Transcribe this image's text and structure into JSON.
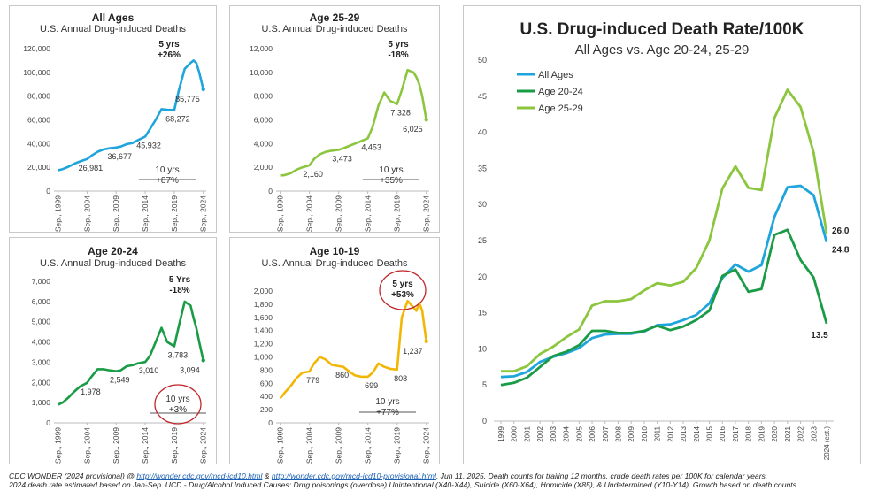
{
  "small_xticks": [
    "Sep., 1999",
    "Sep., 2004",
    "Sep., 2009",
    "Sep., 2014",
    "Sep., 2019",
    "Sep., 2024"
  ],
  "chart_data": [
    {
      "id": "all-ages",
      "type": "line",
      "title": "All Ages",
      "subtitle": "U.S. Annual Drug-induced Deaths",
      "color": "#1fa5dc",
      "ylim": [
        0,
        120000
      ],
      "yticks": [
        0,
        20000,
        40000,
        60000,
        80000,
        100000,
        120000
      ],
      "ytick_labels": [
        "0",
        "20,000",
        "40,000",
        "60,000",
        "80,000",
        "100,000",
        "120,000"
      ],
      "x": [
        1999.7,
        2000.5,
        2001.5,
        2002.5,
        2003.5,
        2004.7,
        2005.5,
        2006.5,
        2007.5,
        2008.5,
        2009.7,
        2010.5,
        2011.5,
        2012.5,
        2013.5,
        2014.7,
        2015.5,
        2016.5,
        2017.5,
        2018.5,
        2019.7,
        2020.5,
        2021.5,
        2022.5,
        2023.0,
        2023.5,
        2024.0,
        2024.7
      ],
      "values": [
        17500,
        18500,
        20500,
        23000,
        25000,
        26981,
        30000,
        33000,
        35000,
        36000,
        36677,
        37500,
        39500,
        40500,
        43000,
        45932,
        52000,
        60000,
        69000,
        68500,
        68272,
        85000,
        103000,
        108000,
        110000,
        108000,
        100000,
        85775
      ],
      "labels": [
        {
          "x": 2004.7,
          "y": 26981,
          "text": "26,981"
        },
        {
          "x": 2009.7,
          "y": 36677,
          "text": "36,677"
        },
        {
          "x": 2014.7,
          "y": 45932,
          "text": "45,932"
        },
        {
          "x": 2019.7,
          "y": 68272,
          "text": "68,272"
        },
        {
          "x": 2024.7,
          "y": 85775,
          "text": "85,775"
        }
      ],
      "annot_5yr": {
        "line1": "5 yrs",
        "line2": "+26%"
      },
      "annot_10yr": {
        "line1": "10 yrs",
        "line2": "+87%"
      }
    },
    {
      "id": "age-25-29",
      "type": "line",
      "title": "Age 25-29",
      "subtitle": "U.S. Annual Drug-induced Deaths",
      "color": "#8cc63f",
      "ylim": [
        0,
        12000
      ],
      "yticks": [
        0,
        2000,
        4000,
        6000,
        8000,
        10000,
        12000
      ],
      "ytick_labels": [
        "0",
        "2,000",
        "4,000",
        "6,000",
        "8,000",
        "10,000",
        "12,000"
      ],
      "x": [
        1999.7,
        2000.5,
        2001.5,
        2002.5,
        2003.5,
        2004.7,
        2005.5,
        2006.5,
        2007.5,
        2008.5,
        2009.7,
        2010.5,
        2011.5,
        2012.5,
        2013.5,
        2014.7,
        2015.5,
        2016.5,
        2017.5,
        2018.5,
        2019.7,
        2020.5,
        2021.5,
        2022.5,
        2023.0,
        2023.5,
        2024.0,
        2024.7
      ],
      "values": [
        1300,
        1350,
        1500,
        1800,
        2000,
        2160,
        2700,
        3100,
        3300,
        3400,
        3473,
        3600,
        3800,
        4000,
        4200,
        4453,
        5400,
        7200,
        8300,
        7600,
        7328,
        8500,
        10200,
        10000,
        9600,
        9000,
        8000,
        6025
      ],
      "labels": [
        {
          "x": 2004.7,
          "y": 2160,
          "text": "2,160"
        },
        {
          "x": 2009.7,
          "y": 3473,
          "text": "3,473"
        },
        {
          "x": 2014.7,
          "y": 4453,
          "text": "4,453"
        },
        {
          "x": 2019.7,
          "y": 7328,
          "text": "7,328"
        },
        {
          "x": 2024.7,
          "y": 6025,
          "text": "6,025"
        }
      ],
      "annot_5yr": {
        "line1": "5 yrs",
        "line2": "-18%"
      },
      "annot_10yr": {
        "line1": "10 yrs",
        "line2": "+35%"
      }
    },
    {
      "id": "age-20-24",
      "type": "line",
      "title": "Age 20-24",
      "subtitle": "U.S. Annual Drug-induced Deaths",
      "color": "#1a9b46",
      "ylim": [
        0,
        7000
      ],
      "yticks": [
        0,
        1000,
        2000,
        3000,
        4000,
        5000,
        6000,
        7000
      ],
      "ytick_labels": [
        "0",
        "1,000",
        "2,000",
        "3,000",
        "4,000",
        "5,000",
        "6,000",
        "7,000"
      ],
      "x": [
        1999.7,
        2000.5,
        2001.5,
        2002.5,
        2003.5,
        2004.7,
        2005.5,
        2006.5,
        2007.5,
        2008.5,
        2009.7,
        2010.5,
        2011.5,
        2012.5,
        2013.5,
        2014.7,
        2015.5,
        2016.5,
        2017.5,
        2018.5,
        2019.7,
        2020.5,
        2021.5,
        2022.5,
        2023.0,
        2023.5,
        2024.0,
        2024.7
      ],
      "values": [
        900,
        1000,
        1250,
        1550,
        1800,
        1978,
        2300,
        2650,
        2650,
        2600,
        2549,
        2600,
        2800,
        2850,
        2950,
        3010,
        3300,
        4000,
        4700,
        4000,
        3783,
        4800,
        6000,
        5800,
        5200,
        4700,
        4000,
        3094
      ],
      "labels": [
        {
          "x": 2004.7,
          "y": 1978,
          "text": "1,978"
        },
        {
          "x": 2009.7,
          "y": 2549,
          "text": "2,549"
        },
        {
          "x": 2014.7,
          "y": 3010,
          "text": "3,010"
        },
        {
          "x": 2019.7,
          "y": 3783,
          "text": "3,783"
        },
        {
          "x": 2024.7,
          "y": 3094,
          "text": "3,094"
        }
      ],
      "annot_5yr": {
        "line1": "5 Yrs",
        "line2": "-18%"
      },
      "annot_10yr": {
        "line1": "10 yrs",
        "line2": "+3%"
      }
    },
    {
      "id": "age-10-19",
      "type": "line",
      "title": "Age 10-19",
      "subtitle": "U.S. Annual Drug-induced Deaths",
      "color": "#f2b705",
      "ylim": [
        0,
        2000
      ],
      "yticks": [
        0,
        200,
        400,
        600,
        800,
        1000,
        1200,
        1400,
        1600,
        1800,
        2000
      ],
      "ytick_labels": [
        "0",
        "200",
        "400",
        "600",
        "800",
        "1,000",
        "1,200",
        "1,400",
        "1,600",
        "1,800",
        "2,000"
      ],
      "x": [
        1999.7,
        2000.5,
        2001.5,
        2002.5,
        2003.5,
        2004.7,
        2005.5,
        2006.5,
        2007.5,
        2008.5,
        2009.7,
        2010.5,
        2011.5,
        2012.5,
        2013.5,
        2014.7,
        2015.5,
        2016.5,
        2017.5,
        2018.5,
        2019.7,
        2020.5,
        2021.5,
        2022.5,
        2023.0,
        2023.5,
        2024.0,
        2024.7
      ],
      "values": [
        370,
        460,
        560,
        680,
        760,
        779,
        900,
        1000,
        960,
        880,
        860,
        850,
        780,
        720,
        700,
        699,
        760,
        900,
        850,
        820,
        808,
        1600,
        1850,
        1750,
        1700,
        1820,
        1700,
        1237
      ],
      "labels": [
        {
          "x": 2004.7,
          "y": 779,
          "text": "779"
        },
        {
          "x": 2009.7,
          "y": 860,
          "text": "860"
        },
        {
          "x": 2014.7,
          "y": 699,
          "text": "699"
        },
        {
          "x": 2019.7,
          "y": 808,
          "text": "808"
        },
        {
          "x": 2024.7,
          "y": 1237,
          "text": "1,237"
        }
      ],
      "annot_5yr": {
        "line1": "5 yrs",
        "line2": "+53%"
      },
      "annot_10yr": {
        "line1": "10 yrs",
        "line2": "+77%"
      }
    },
    {
      "id": "rate-per-100k",
      "type": "line",
      "title": "U.S. Drug-induced Death Rate/100K",
      "subtitle": "All Ages vs. Age 20-24, 25-29",
      "categories": [
        "1999",
        "2000",
        "2001",
        "2002",
        "2003",
        "2004",
        "2005",
        "2006",
        "2007",
        "2008",
        "2009",
        "2010",
        "2011",
        "2012",
        "2013",
        "2014",
        "2015",
        "2016",
        "2017",
        "2018",
        "2019",
        "2020",
        "2021",
        "2022",
        "2023",
        "2024 (est.)"
      ],
      "ylim": [
        0,
        50
      ],
      "yticks": [
        0,
        5,
        10,
        15,
        20,
        25,
        30,
        35,
        40,
        45,
        50
      ],
      "ytick_labels": [
        "0",
        "5",
        "10",
        "15",
        "20",
        "25",
        "30",
        "35",
        "40",
        "45",
        "50"
      ],
      "series": [
        {
          "name": "All Ages",
          "color": "#1fa5dc",
          "values": [
            6.1,
            6.2,
            6.8,
            8.2,
            8.9,
            9.4,
            10.1,
            11.5,
            12.0,
            12.1,
            12.1,
            12.4,
            13.3,
            13.4,
            14.0,
            14.7,
            16.3,
            19.8,
            21.7,
            20.7,
            21.6,
            28.3,
            32.4,
            32.6,
            31.3,
            24.8
          ]
        },
        {
          "name": "Age 20-24",
          "color": "#1a9b46",
          "values": [
            5.0,
            5.3,
            6.0,
            7.5,
            9.0,
            9.6,
            10.5,
            12.5,
            12.5,
            12.2,
            12.2,
            12.5,
            13.2,
            12.6,
            13.1,
            14.0,
            15.3,
            20.1,
            21.0,
            17.9,
            18.3,
            25.8,
            26.5,
            22.3,
            19.9,
            13.5
          ]
        },
        {
          "name": "Age 25-29",
          "color": "#8cc63f",
          "values": [
            6.9,
            6.9,
            7.6,
            9.3,
            10.3,
            11.6,
            12.7,
            16.0,
            16.6,
            16.6,
            16.9,
            18.1,
            19.1,
            18.8,
            19.3,
            21.2,
            25.0,
            32.2,
            35.3,
            32.3,
            32.0,
            42.0,
            45.9,
            43.5,
            37.2,
            26.0
          ]
        }
      ],
      "end_labels": [
        {
          "series": "Age 25-29",
          "text": "26.0"
        },
        {
          "series": "All Ages",
          "text": "24.8"
        },
        {
          "series": "Age 20-24",
          "text": "13.5"
        }
      ],
      "legend": "top-left"
    }
  ],
  "footnote": {
    "part1": "CDC WONDER (2024 provisional) @ ",
    "link1": "http://wonder.cdc.gov/mcd-icd10.html",
    "part2": "  & ",
    "link2": "http://wonder.cdc.gov/mcd-icd10-provisional.html",
    "part3": ", Jun 11, 2025. Death counts for trailing 12 months, crude death rates per 100K for calendar years,",
    "line2": "2024 death rate estimated based on Jan-Sep.  UCD - Drug/Alcohol Induced Causes: Drug poisonings (overdose) Unintentional (X40-X44), Suicide (X60-X64), Homicide (X85), & Undetermined (Y10-Y14). Growth based on death counts."
  }
}
